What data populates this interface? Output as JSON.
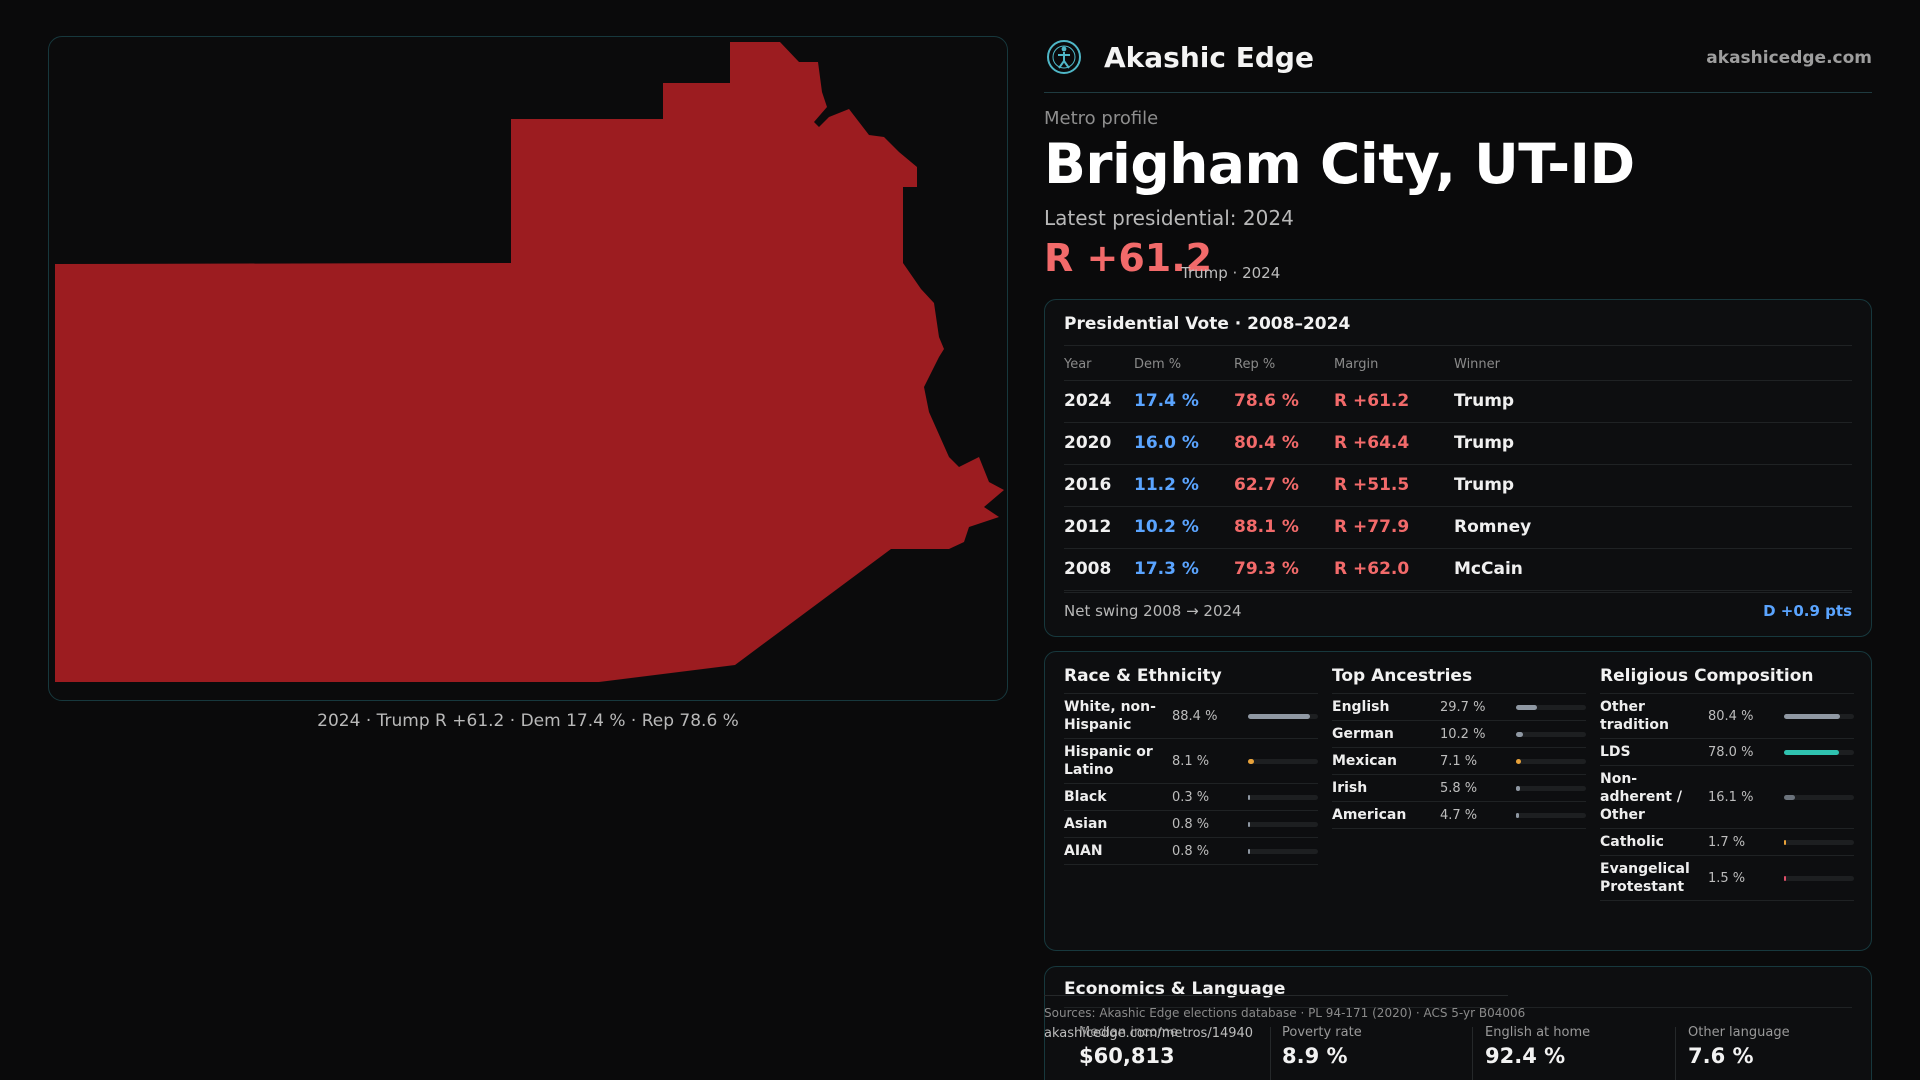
{
  "header": {
    "brand": "Akashic Edge",
    "site": "akashicedge.com",
    "logo_icon": "person-globe-icon"
  },
  "profile": {
    "eyebrow": "Metro profile",
    "title": "Brigham City, UT-ID",
    "latest_label": "Latest presidential: 2024",
    "margin": "R +61.2",
    "margin_note": "Trump · 2024"
  },
  "map": {
    "caption": "2024 · Trump R +61.2 · Dem 17.4 % · Rep 78.6 %",
    "fill_color": "#9c1c20"
  },
  "presidential": {
    "title": "Presidential Vote · 2008–2024",
    "columns": [
      "Year",
      "Dem %",
      "Rep %",
      "Margin",
      "Winner"
    ],
    "rows": [
      {
        "year": "2024",
        "dem": "17.4 %",
        "rep": "78.6 %",
        "margin": "R +61.2",
        "winner": "Trump"
      },
      {
        "year": "2020",
        "dem": "16.0 %",
        "rep": "80.4 %",
        "margin": "R +64.4",
        "winner": "Trump"
      },
      {
        "year": "2016",
        "dem": "11.2 %",
        "rep": "62.7 %",
        "margin": "R +51.5",
        "winner": "Trump"
      },
      {
        "year": "2012",
        "dem": "10.2 %",
        "rep": "88.1 %",
        "margin": "R +77.9",
        "winner": "Romney"
      },
      {
        "year": "2008",
        "dem": "17.3 %",
        "rep": "79.3 %",
        "margin": "R +62.0",
        "winner": "McCain"
      }
    ],
    "swing_label": "Net swing 2008 → 2024",
    "swing_value": "D +0.9 pts"
  },
  "race": {
    "title": "Race & Ethnicity",
    "items": [
      {
        "label": "White, non-Hispanic",
        "pct": "88.4 %",
        "share": 88.4,
        "color": "#8f98a3"
      },
      {
        "label": "Hispanic or Latino",
        "pct": "8.1 %",
        "share": 8.1,
        "color": "#e8a23a"
      },
      {
        "label": "Black",
        "pct": "0.3 %",
        "share": 0.3,
        "color": "#8f98a3"
      },
      {
        "label": "Asian",
        "pct": "0.8 %",
        "share": 0.8,
        "color": "#8f98a3"
      },
      {
        "label": "AIAN",
        "pct": "0.8 %",
        "share": 0.8,
        "color": "#8f98a3"
      }
    ]
  },
  "ancestry": {
    "title": "Top Ancestries",
    "items": [
      {
        "label": "English",
        "pct": "29.7 %",
        "share": 29.7,
        "color": "#8f98a3"
      },
      {
        "label": "German",
        "pct": "10.2 %",
        "share": 10.2,
        "color": "#8f98a3"
      },
      {
        "label": "Mexican",
        "pct": "7.1 %",
        "share": 7.1,
        "color": "#e8a23a"
      },
      {
        "label": "Irish",
        "pct": "5.8 %",
        "share": 5.8,
        "color": "#8f98a3"
      },
      {
        "label": "American",
        "pct": "4.7 %",
        "share": 4.7,
        "color": "#8f98a3"
      }
    ]
  },
  "religion": {
    "title": "Religious Composition",
    "items": [
      {
        "label": "Other tradition",
        "pct": "80.4 %",
        "share": 80.4,
        "color": "#8f98a3"
      },
      {
        "label": "LDS",
        "pct": "78.0 %",
        "share": 78.0,
        "color": "#2fc2b0"
      },
      {
        "label": "Non-adherent / Other",
        "pct": "16.1 %",
        "share": 16.1,
        "color": "#6b737c"
      },
      {
        "label": "Catholic",
        "pct": "1.7 %",
        "share": 1.7,
        "color": "#e8a23a"
      },
      {
        "label": "Evangelical Protestant",
        "pct": "1.5 %",
        "share": 1.5,
        "color": "#e0506a"
      }
    ]
  },
  "economics": {
    "title": "Economics & Language",
    "stats": [
      {
        "label": "Median income",
        "value": "$60,813"
      },
      {
        "label": "Poverty rate",
        "value": "8.9 %"
      },
      {
        "label": "English at home",
        "value": "92.4 %"
      },
      {
        "label": "Other language",
        "value": "7.6 %"
      }
    ]
  },
  "footer": {
    "sources": "Sources: Akashic Edge elections database · PL 94-171 (2020) · ACS 5-yr B04006",
    "permalink": "akashicedge.com/metros/14940"
  }
}
